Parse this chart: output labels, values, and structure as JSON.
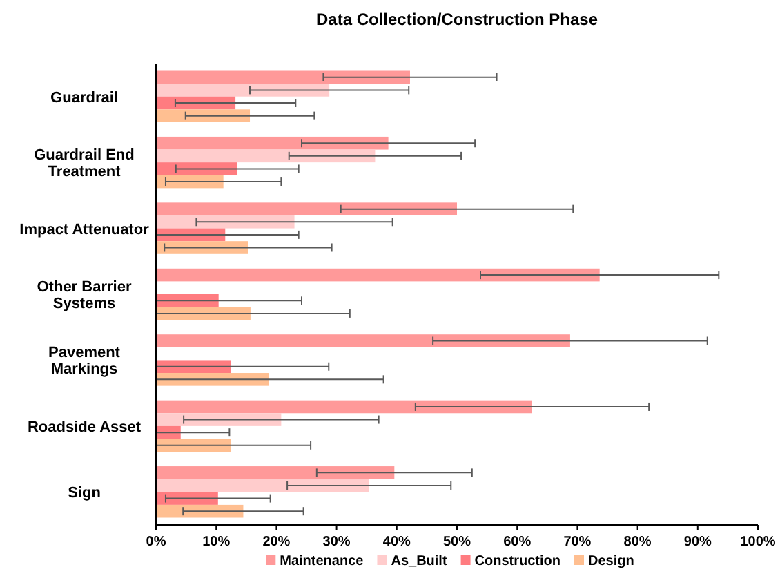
{
  "chart_data": {
    "type": "bar",
    "orientation": "horizontal",
    "title": "Data Collection/Construction Phase",
    "categories": [
      "Guardrail",
      "Guardrail End Treatment",
      "Impact Attenuator",
      "Other Barrier Systems",
      "Pavement Markings",
      "Roadside Asset",
      "Sign"
    ],
    "series": [
      {
        "name": "Maintenance",
        "color": "#ff9999",
        "values": [
          42.2,
          38.6,
          50,
          73.7,
          68.8,
          62.5,
          39.6
        ],
        "errors": [
          14.4,
          14.4,
          19.3,
          19.8,
          22.8,
          19.4,
          12.9
        ]
      },
      {
        "name": "As_Built",
        "color": "#ffcccc",
        "values": [
          28.8,
          36.4,
          23,
          null,
          null,
          20.8,
          35.4
        ],
        "errors": [
          13.2,
          14.3,
          16.3,
          null,
          null,
          16.2,
          13.6
        ]
      },
      {
        "name": "Construction",
        "color": "#ff7c80",
        "values": [
          13.2,
          13.5,
          11.5,
          10.4,
          12.4,
          4.1,
          10.3
        ],
        "errors": [
          10,
          10.2,
          [
            0,
            23.7
          ],
          [
            0,
            24.2
          ],
          [
            0,
            28.7
          ],
          [
            0,
            12.2
          ],
          8.7
        ]
      },
      {
        "name": "Design",
        "color": "#ffbf91",
        "values": [
          15.6,
          11.2,
          15.3,
          15.7,
          18.7,
          12.4,
          14.5
        ],
        "errors": [
          10.7,
          9.6,
          13.9,
          [
            0,
            32.2
          ],
          [
            0,
            37.8
          ],
          [
            0,
            25.7
          ],
          10
        ]
      }
    ],
    "xlim": [
      0,
      100
    ],
    "xticks": [
      {
        "value": 0,
        "label": "0%"
      },
      {
        "value": 10,
        "label": "10%"
      },
      {
        "value": 20,
        "label": "20%"
      },
      {
        "value": 30,
        "label": "30%"
      },
      {
        "value": 40,
        "label": "40%"
      },
      {
        "value": 50,
        "label": "50%"
      },
      {
        "value": 60,
        "label": "60%"
      },
      {
        "value": 70,
        "label": "70%"
      },
      {
        "value": 80,
        "label": "80%"
      },
      {
        "value": 90,
        "label": "90%"
      },
      {
        "value": 100,
        "label": "100%"
      }
    ],
    "grid": false,
    "legend": "bottom"
  }
}
